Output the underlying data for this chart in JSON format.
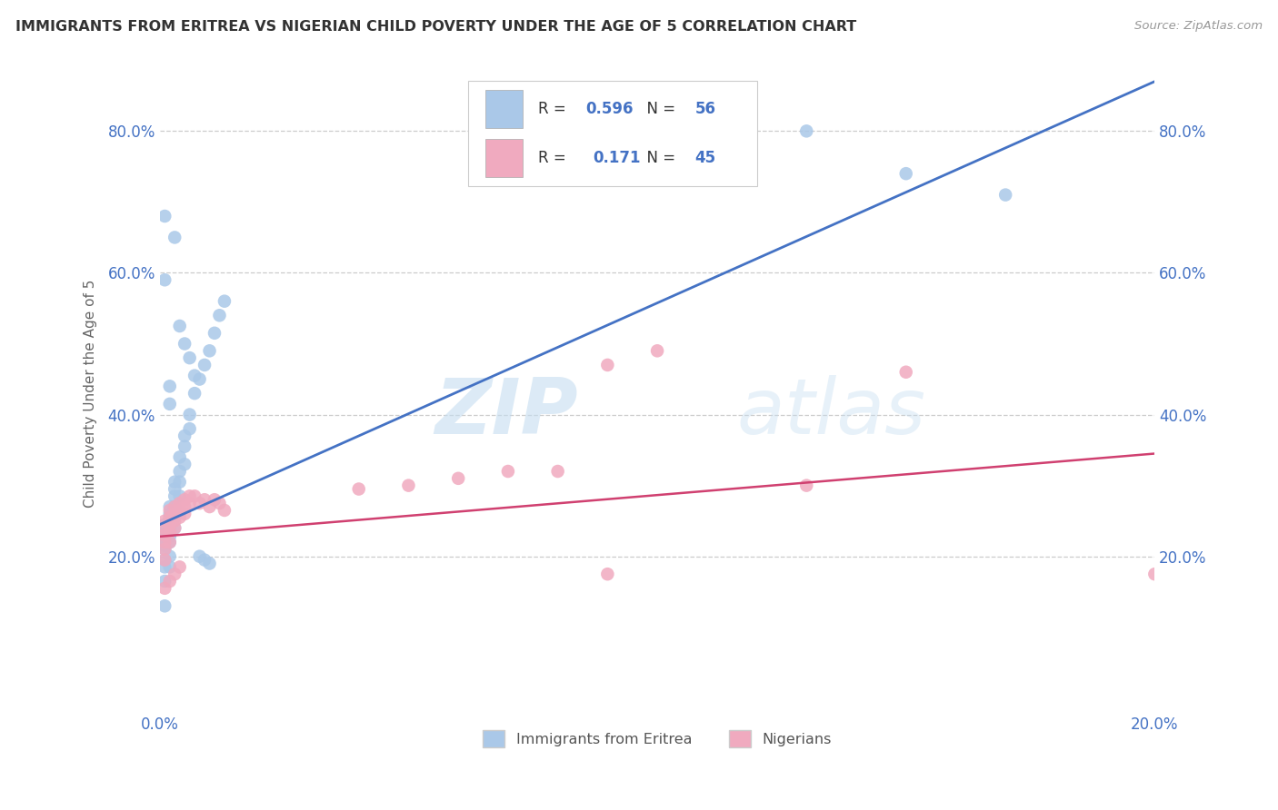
{
  "title": "IMMIGRANTS FROM ERITREA VS NIGERIAN CHILD POVERTY UNDER THE AGE OF 5 CORRELATION CHART",
  "source": "Source: ZipAtlas.com",
  "ylabel": "Child Poverty Under the Age of 5",
  "xlim": [
    0.0,
    0.2
  ],
  "ylim": [
    -0.02,
    0.88
  ],
  "yticks": [
    0.2,
    0.4,
    0.6,
    0.8
  ],
  "ytick_labels": [
    "20.0%",
    "40.0%",
    "60.0%",
    "80.0%"
  ],
  "xtick_labels": [
    "0.0%",
    "",
    "",
    "",
    "",
    "20.0%"
  ],
  "series1_color": "#aac8e8",
  "series2_color": "#f0aabf",
  "line1_color": "#4472c4",
  "line2_color": "#d04070",
  "series1_label": "Immigrants from Eritrea",
  "series2_label": "Nigerians",
  "R1": 0.596,
  "N1": 56,
  "R2": 0.171,
  "N2": 45,
  "watermark_zip": "ZIP",
  "watermark_atlas": "atlas",
  "series1_x": [
    0.001,
    0.001,
    0.001,
    0.001,
    0.001,
    0.001,
    0.001,
    0.001,
    0.001,
    0.001,
    0.002,
    0.002,
    0.002,
    0.002,
    0.002,
    0.002,
    0.002,
    0.002,
    0.002,
    0.003,
    0.003,
    0.003,
    0.003,
    0.003,
    0.003,
    0.004,
    0.004,
    0.004,
    0.004,
    0.005,
    0.005,
    0.005,
    0.006,
    0.006,
    0.007,
    0.008,
    0.009,
    0.01,
    0.011,
    0.012,
    0.013,
    0.001,
    0.001,
    0.002,
    0.002,
    0.003,
    0.004,
    0.005,
    0.006,
    0.007,
    0.008,
    0.009,
    0.01,
    0.13,
    0.15,
    0.17
  ],
  "series1_y": [
    0.245,
    0.235,
    0.225,
    0.22,
    0.215,
    0.21,
    0.195,
    0.185,
    0.165,
    0.13,
    0.27,
    0.26,
    0.25,
    0.24,
    0.235,
    0.228,
    0.22,
    0.2,
    0.185,
    0.305,
    0.295,
    0.285,
    0.27,
    0.255,
    0.24,
    0.34,
    0.32,
    0.305,
    0.285,
    0.37,
    0.355,
    0.33,
    0.4,
    0.38,
    0.43,
    0.45,
    0.47,
    0.49,
    0.515,
    0.54,
    0.56,
    0.68,
    0.59,
    0.44,
    0.415,
    0.65,
    0.525,
    0.5,
    0.48,
    0.455,
    0.2,
    0.195,
    0.19,
    0.8,
    0.74,
    0.71
  ],
  "series2_x": [
    0.001,
    0.001,
    0.001,
    0.001,
    0.001,
    0.001,
    0.002,
    0.002,
    0.002,
    0.002,
    0.002,
    0.003,
    0.003,
    0.003,
    0.003,
    0.004,
    0.004,
    0.004,
    0.005,
    0.005,
    0.005,
    0.006,
    0.006,
    0.007,
    0.008,
    0.009,
    0.01,
    0.011,
    0.012,
    0.013,
    0.001,
    0.002,
    0.003,
    0.004,
    0.04,
    0.05,
    0.06,
    0.07,
    0.08,
    0.09,
    0.1,
    0.13,
    0.15,
    0.09,
    0.2
  ],
  "series2_y": [
    0.25,
    0.24,
    0.23,
    0.22,
    0.21,
    0.195,
    0.265,
    0.255,
    0.245,
    0.235,
    0.22,
    0.27,
    0.26,
    0.25,
    0.24,
    0.275,
    0.265,
    0.255,
    0.28,
    0.27,
    0.26,
    0.285,
    0.275,
    0.285,
    0.275,
    0.28,
    0.27,
    0.28,
    0.275,
    0.265,
    0.155,
    0.165,
    0.175,
    0.185,
    0.295,
    0.3,
    0.31,
    0.32,
    0.32,
    0.47,
    0.49,
    0.3,
    0.46,
    0.175,
    0.175
  ]
}
